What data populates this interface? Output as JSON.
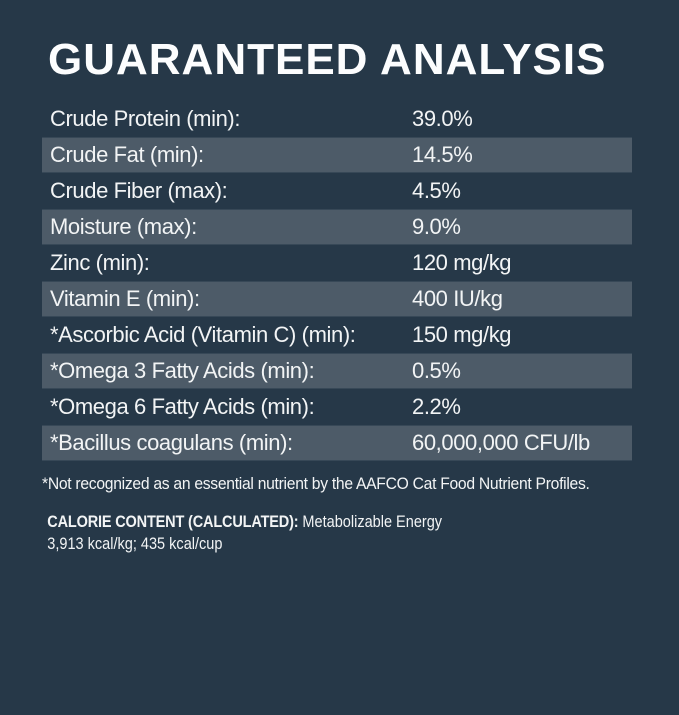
{
  "page": {
    "background_color": "#263848",
    "stripe_color": "#4d5b68",
    "text_color": "#f2f4f5"
  },
  "title": "GUARANTEED ANALYSIS",
  "table": {
    "rows": [
      {
        "label": "Crude Protein (min):",
        "value": "39.0%",
        "striped": false
      },
      {
        "label": "Crude Fat (min):",
        "value": "14.5%",
        "striped": true
      },
      {
        "label": "Crude Fiber (max):",
        "value": "4.5%",
        "striped": false
      },
      {
        "label": "Moisture (max):",
        "value": "9.0%",
        "striped": true
      },
      {
        "label": "Zinc (min):",
        "value": "120 mg/kg",
        "striped": false
      },
      {
        "label": "Vitamin E (min):",
        "value": "400 IU/kg",
        "striped": true
      },
      {
        "label": "*Ascorbic Acid (Vitamin C) (min):",
        "value": "150 mg/kg",
        "striped": false
      },
      {
        "label": "*Omega 3 Fatty Acids (min):",
        "value": "0.5%",
        "striped": true
      },
      {
        "label": "*Omega 6 Fatty Acids (min):",
        "value": "2.2%",
        "striped": false
      },
      {
        "label": "*Bacillus coagulans (min):",
        "value": "60,000,000 CFU/lb",
        "striped": true
      }
    ]
  },
  "footnote": "*Not recognized as an essential nutrient by the AAFCO Cat Food Nutrient Profiles.",
  "calorie": {
    "heading": "CALORIE CONTENT (CALCULATED):",
    "description": " Metabolizable Energy",
    "values": "3,913 kcal/kg; 435 kcal/cup"
  }
}
